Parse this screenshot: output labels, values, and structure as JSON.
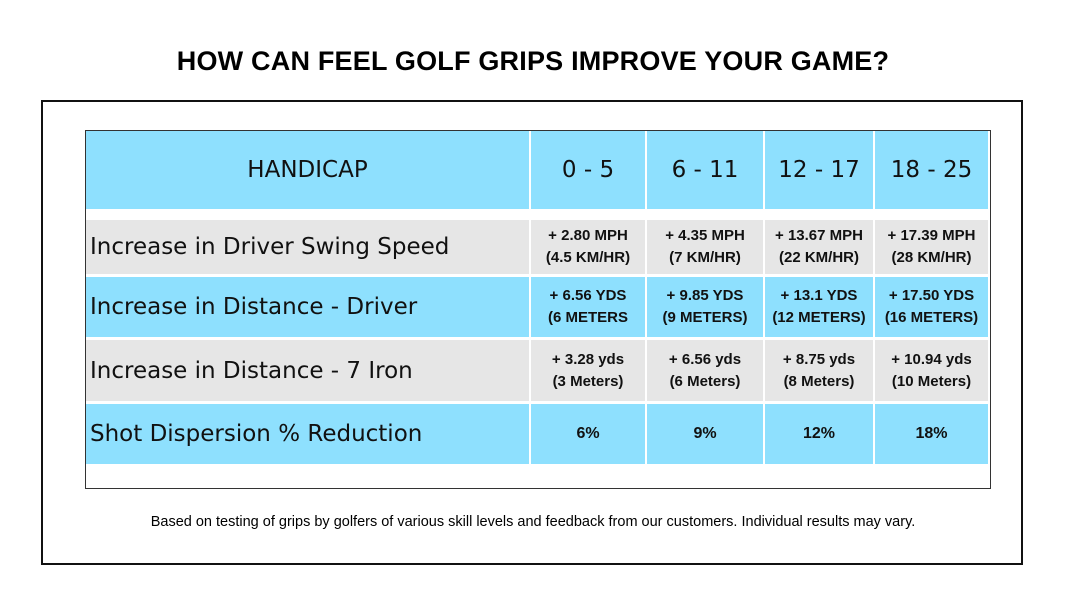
{
  "title": "HOW CAN FEEL GOLF GRIPS IMPROVE YOUR GAME?",
  "colors": {
    "header_blue": "#8ee0fe",
    "row_gray": "#e6e6e6"
  },
  "chart_data": {
    "type": "table",
    "columns": [
      "HANDICAP",
      "0 - 5",
      "6 - 11",
      "12 - 17",
      "18 - 25"
    ],
    "rows": [
      {
        "label": "Increase in Driver Swing Speed",
        "cells": [
          [
            "+ 2.80 MPH",
            "(4.5 KM/HR)"
          ],
          [
            "+ 4.35 MPH",
            "(7 KM/HR)"
          ],
          [
            "+ 13.67 MPH",
            "(22 KM/HR)"
          ],
          [
            "+ 17.39 MPH",
            "(28 KM/HR)"
          ]
        ]
      },
      {
        "label": "Increase in Distance - Driver",
        "cells": [
          [
            "+ 6.56 YDS",
            "(6 METERS"
          ],
          [
            "+ 9.85 YDS",
            "(9 METERS)"
          ],
          [
            "+ 13.1 YDS",
            "(12 METERS)"
          ],
          [
            "+ 17.50 YDS",
            "(16 METERS)"
          ]
        ]
      },
      {
        "label": "Increase in Distance - 7 Iron",
        "cells": [
          [
            "+ 3.28 yds",
            "(3 Meters)"
          ],
          [
            "+ 6.56 yds",
            "(6 Meters)"
          ],
          [
            "+ 8.75 yds",
            "(8 Meters)"
          ],
          [
            "+ 10.94 yds",
            "(10 Meters)"
          ]
        ]
      },
      {
        "label": "Shot Dispersion % Reduction",
        "cells": [
          [
            "6%"
          ],
          [
            "9%"
          ],
          [
            "12%"
          ],
          [
            "18%"
          ]
        ]
      }
    ]
  },
  "footnote": "Based on testing of grips by golfers of various skill levels and feedback from our customers.  Individual results may vary."
}
